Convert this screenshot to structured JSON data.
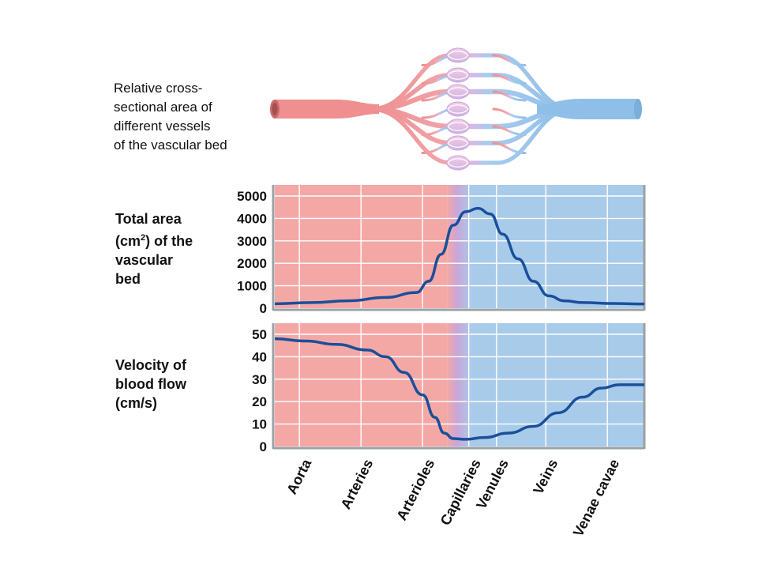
{
  "diagram": {
    "label": "Relative cross-\nsectional area of\ndifferent vessels\nof the vascular bed"
  },
  "panels": {
    "area": {
      "label_line1": "Total area",
      "label_pre": "(cm",
      "label_sup": "2",
      "label_post": ") of the",
      "label_line3": "vascular",
      "label_line4": "bed"
    },
    "velocity": {
      "label_line1": "Velocity of",
      "label_line2": "blood flow",
      "label_line3": "(cm/s)"
    }
  },
  "colors": {
    "arterial_bg": "#f4a8a6",
    "venous_bg": "#a9cbea",
    "curve": "#1a4f9a",
    "grid": "#ffffff",
    "artery_vessel": "#ef8f8f",
    "vein_vessel": "#8fbfe8"
  },
  "chart_data": [
    {
      "type": "line",
      "ylabel": "Total area (cm2) of the vascular bed",
      "categories": [
        "Aorta",
        "Arteries",
        "Arterioles",
        "Capillaries",
        "Venules",
        "Veins",
        "Venae cavae"
      ],
      "category_pos": [
        0.6,
        1.6,
        2.6,
        3.35,
        3.8,
        4.6,
        5.6
      ],
      "ylim": [
        0,
        5000
      ],
      "yticks": [
        0,
        1000,
        2000,
        3000,
        4000,
        5000
      ],
      "xlim": [
        0,
        6
      ],
      "grid": true,
      "x": [
        0,
        0.6,
        1.2,
        1.8,
        2.3,
        2.5,
        2.7,
        2.9,
        3.1,
        3.3,
        3.5,
        3.7,
        3.95,
        4.2,
        4.45,
        4.7,
        5.0,
        5.5,
        6.0
      ],
      "values": [
        200,
        250,
        330,
        480,
        700,
        1200,
        2400,
        3700,
        4300,
        4450,
        4200,
        3300,
        2200,
        1200,
        550,
        330,
        250,
        210,
        190
      ]
    },
    {
      "type": "line",
      "ylabel": "Velocity of blood flow (cm/s)",
      "categories": [
        "Aorta",
        "Arteries",
        "Arterioles",
        "Capillaries",
        "Venules",
        "Veins",
        "Venae cavae"
      ],
      "category_pos": [
        0.6,
        1.6,
        2.6,
        3.35,
        3.8,
        4.6,
        5.6
      ],
      "ylim": [
        0,
        50
      ],
      "yticks": [
        0,
        10,
        20,
        30,
        40,
        50
      ],
      "xlim": [
        0,
        6
      ],
      "grid": true,
      "x": [
        0,
        0.5,
        1.0,
        1.5,
        1.8,
        2.1,
        2.4,
        2.6,
        2.75,
        2.9,
        3.1,
        3.4,
        3.8,
        4.2,
        4.6,
        5.0,
        5.3,
        5.6,
        6.0
      ],
      "values": [
        48,
        47,
        45.5,
        43,
        40,
        33,
        23,
        13,
        6,
        3.5,
        3.2,
        4,
        6,
        9,
        15,
        22,
        26,
        27.5,
        27.5
      ]
    }
  ]
}
